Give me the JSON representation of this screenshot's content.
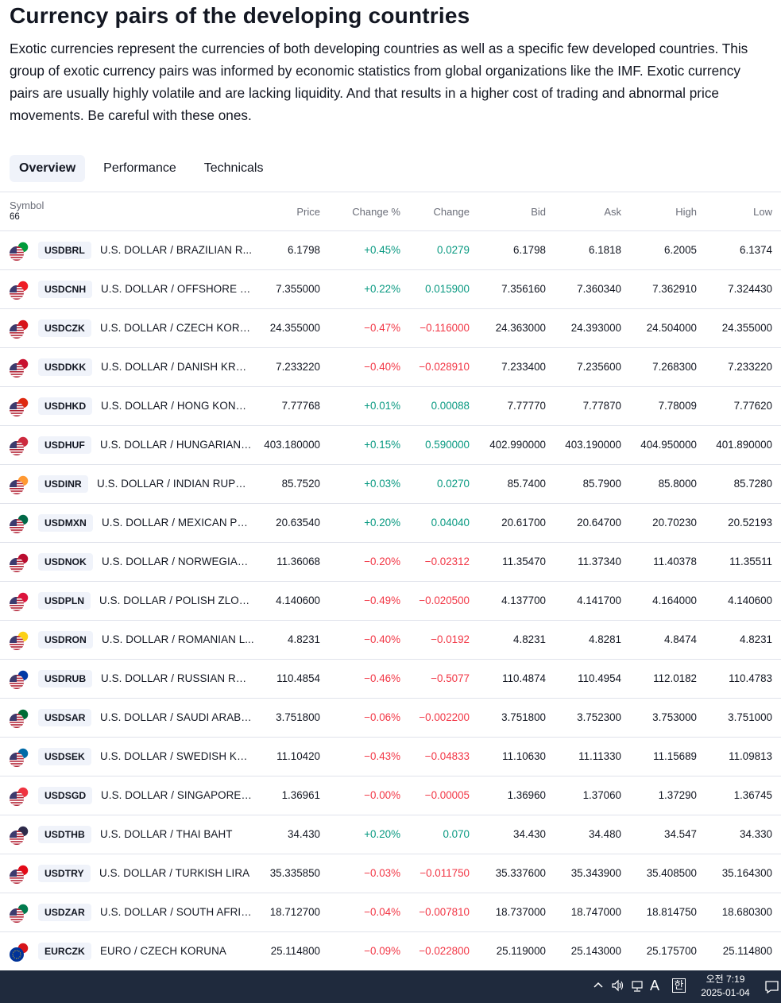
{
  "page": {
    "title": "Currency pairs of the developing countries",
    "description": "Exotic currencies represent the currencies of both developing countries as well as a specific few developed countries. This group of exotic currency pairs was informed by economic statistics from global organizations like the IMF. Exotic currency pairs are usually highly volatile and are lacking liquidity. And that results in a higher cost of trading and abnormal price movements. Be careful with these ones."
  },
  "tabs": [
    {
      "label": "Overview",
      "active": true
    },
    {
      "label": "Performance",
      "active": false
    },
    {
      "label": "Technicals",
      "active": false
    }
  ],
  "table": {
    "headers": {
      "symbol": "Symbol",
      "count": "66",
      "price": "Price",
      "change_pct": "Change %",
      "change": "Change",
      "bid": "Bid",
      "ask": "Ask",
      "high": "High",
      "low": "Low"
    },
    "rows": [
      {
        "ticker": "USDBRL",
        "name": "U.S. DOLLAR / BRAZILIAN R...",
        "flag": "brazil-flag-icon",
        "flag_color": "#009b3a",
        "price": "6.1798",
        "change_pct": "+0.45%",
        "change": "0.0279",
        "dir": "pos",
        "bid": "6.1798",
        "ask": "6.1818",
        "high": "6.2005",
        "low": "6.1374"
      },
      {
        "ticker": "USDCNH",
        "name": "U.S. DOLLAR / OFFSHORE C...",
        "flag": "china-flag-icon",
        "flag_color": "#ee1c25",
        "price": "7.355000",
        "change_pct": "+0.22%",
        "change": "0.015900",
        "dir": "pos",
        "bid": "7.356160",
        "ask": "7.360340",
        "high": "7.362910",
        "low": "7.324430"
      },
      {
        "ticker": "USDCZK",
        "name": "U.S. DOLLAR / CZECH KORU...",
        "flag": "czech-flag-icon",
        "flag_color": "#d7141a",
        "price": "24.355000",
        "change_pct": "−0.47%",
        "change": "−0.116000",
        "dir": "neg",
        "bid": "24.363000",
        "ask": "24.393000",
        "high": "24.504000",
        "low": "24.355000"
      },
      {
        "ticker": "USDDKK",
        "name": "U.S. DOLLAR / DANISH KRONE",
        "flag": "denmark-flag-icon",
        "flag_color": "#c8102e",
        "price": "7.233220",
        "change_pct": "−0.40%",
        "change": "−0.028910",
        "dir": "neg",
        "bid": "7.233400",
        "ask": "7.235600",
        "high": "7.268300",
        "low": "7.233220"
      },
      {
        "ticker": "USDHKD",
        "name": "U.S. DOLLAR / HONG KONG ...",
        "flag": "hong-kong-flag-icon",
        "flag_color": "#de2910",
        "price": "7.77768",
        "change_pct": "+0.01%",
        "change": "0.00088",
        "dir": "pos",
        "bid": "7.77770",
        "ask": "7.77870",
        "high": "7.78009",
        "low": "7.77620"
      },
      {
        "ticker": "USDHUF",
        "name": "U.S. DOLLAR / HUNGARIAN ...",
        "flag": "hungary-flag-icon",
        "flag_color": "#cd2a3e",
        "price": "403.180000",
        "change_pct": "+0.15%",
        "change": "0.590000",
        "dir": "pos",
        "bid": "402.990000",
        "ask": "403.190000",
        "high": "404.950000",
        "low": "401.890000"
      },
      {
        "ticker": "USDINR",
        "name": "U.S. DOLLAR / INDIAN RUPEE",
        "flag": "india-flag-icon",
        "flag_color": "#ff9933",
        "price": "85.7520",
        "change_pct": "+0.03%",
        "change": "0.0270",
        "dir": "pos",
        "bid": "85.7400",
        "ask": "85.7900",
        "high": "85.8000",
        "low": "85.7280"
      },
      {
        "ticker": "USDMXN",
        "name": "U.S. DOLLAR / MEXICAN PESO",
        "flag": "mexico-flag-icon",
        "flag_color": "#006847",
        "price": "20.63540",
        "change_pct": "+0.20%",
        "change": "0.04040",
        "dir": "pos",
        "bid": "20.61700",
        "ask": "20.64700",
        "high": "20.70230",
        "low": "20.52193"
      },
      {
        "ticker": "USDNOK",
        "name": "U.S. DOLLAR / NORWEGIAN ...",
        "flag": "norway-flag-icon",
        "flag_color": "#ba0c2f",
        "price": "11.36068",
        "change_pct": "−0.20%",
        "change": "−0.02312",
        "dir": "neg",
        "bid": "11.35470",
        "ask": "11.37340",
        "high": "11.40378",
        "low": "11.35511"
      },
      {
        "ticker": "USDPLN",
        "name": "U.S. DOLLAR / POLISH ZLOTY",
        "flag": "poland-flag-icon",
        "flag_color": "#dc143c",
        "price": "4.140600",
        "change_pct": "−0.49%",
        "change": "−0.020500",
        "dir": "neg",
        "bid": "4.137700",
        "ask": "4.141700",
        "high": "4.164000",
        "low": "4.140600"
      },
      {
        "ticker": "USDRON",
        "name": "U.S. DOLLAR / ROMANIAN L...",
        "flag": "romania-flag-icon",
        "flag_color": "#fcd116",
        "price": "4.8231",
        "change_pct": "−0.40%",
        "change": "−0.0192",
        "dir": "neg",
        "bid": "4.8231",
        "ask": "4.8281",
        "high": "4.8474",
        "low": "4.8231"
      },
      {
        "ticker": "USDRUB",
        "name": "U.S. DOLLAR / RUSSIAN RUB...",
        "flag": "russia-flag-icon",
        "flag_color": "#0039a6",
        "price": "110.4854",
        "change_pct": "−0.46%",
        "change": "−0.5077",
        "dir": "neg",
        "bid": "110.4874",
        "ask": "110.4954",
        "high": "112.0182",
        "low": "110.4783"
      },
      {
        "ticker": "USDSAR",
        "name": "U.S. DOLLAR / SAUDI ARABI...",
        "flag": "saudi-arabia-flag-icon",
        "flag_color": "#006c35",
        "price": "3.751800",
        "change_pct": "−0.06%",
        "change": "−0.002200",
        "dir": "neg",
        "bid": "3.751800",
        "ask": "3.752300",
        "high": "3.753000",
        "low": "3.751000"
      },
      {
        "ticker": "USDSEK",
        "name": "U.S. DOLLAR / SWEDISH KRO...",
        "flag": "sweden-flag-icon",
        "flag_color": "#006aa7",
        "price": "11.10420",
        "change_pct": "−0.43%",
        "change": "−0.04833",
        "dir": "neg",
        "bid": "11.10630",
        "ask": "11.11330",
        "high": "11.15689",
        "low": "11.09813"
      },
      {
        "ticker": "USDSGD",
        "name": "U.S. DOLLAR / SINGAPORE D...",
        "flag": "singapore-flag-icon",
        "flag_color": "#ef3340",
        "price": "1.36961",
        "change_pct": "−0.00%",
        "change": "−0.00005",
        "dir": "neg",
        "bid": "1.36960",
        "ask": "1.37060",
        "high": "1.37290",
        "low": "1.36745"
      },
      {
        "ticker": "USDTHB",
        "name": "U.S. DOLLAR / THAI BAHT",
        "flag": "thailand-flag-icon",
        "flag_color": "#2d2a4a",
        "price": "34.430",
        "change_pct": "+0.20%",
        "change": "0.070",
        "dir": "pos",
        "bid": "34.430",
        "ask": "34.480",
        "high": "34.547",
        "low": "34.330"
      },
      {
        "ticker": "USDTRY",
        "name": "U.S. DOLLAR / TURKISH LIRA",
        "flag": "turkey-flag-icon",
        "flag_color": "#e30a17",
        "price": "35.335850",
        "change_pct": "−0.03%",
        "change": "−0.011750",
        "dir": "neg",
        "bid": "35.337600",
        "ask": "35.343900",
        "high": "35.408500",
        "low": "35.164300"
      },
      {
        "ticker": "USDZAR",
        "name": "U.S. DOLLAR / SOUTH AFRIC...",
        "flag": "south-africa-flag-icon",
        "flag_color": "#007a4d",
        "price": "18.712700",
        "change_pct": "−0.04%",
        "change": "−0.007810",
        "dir": "neg",
        "bid": "18.737000",
        "ask": "18.747000",
        "high": "18.814750",
        "low": "18.680300"
      },
      {
        "ticker": "EURCZK",
        "name": "EURO / CZECH KORUNA",
        "flag": "euro-flag-icon",
        "flag_color": "#d7141a",
        "price": "25.114800",
        "change_pct": "−0.09%",
        "change": "−0.022800",
        "dir": "neg",
        "bid": "25.119000",
        "ask": "25.143000",
        "high": "25.175700",
        "low": "25.114800"
      }
    ]
  },
  "taskbar": {
    "time": "오전 7:19",
    "date": "2025-01-04",
    "ime_label": "A",
    "ime_mode": "한",
    "colors": {
      "background": "#1f2a3d"
    }
  },
  "colors": {
    "positive": "#089981",
    "negative": "#f23645",
    "ticker_bg": "#f0f3fa",
    "border": "#e0e3eb"
  }
}
